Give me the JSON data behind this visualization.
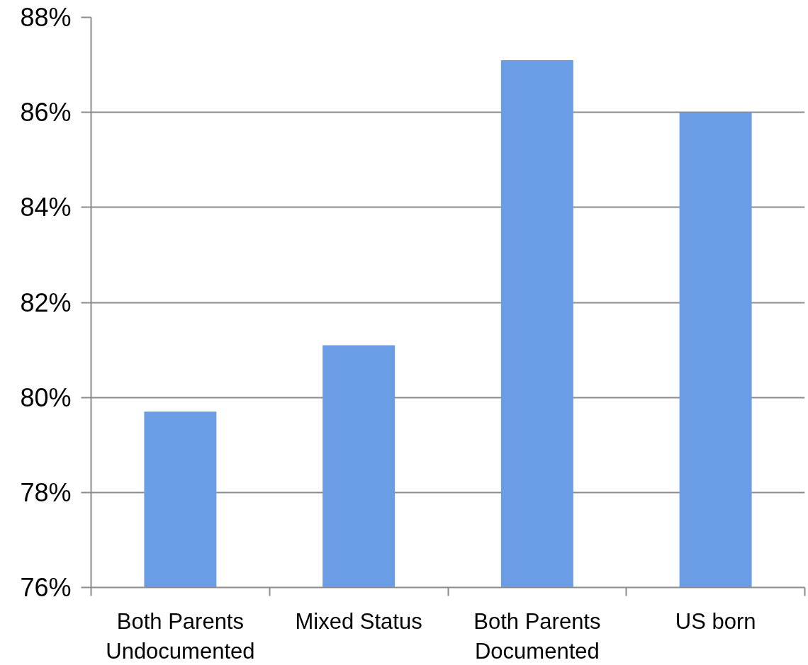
{
  "chart_data": {
    "type": "bar",
    "categories": [
      "Both Parents Undocumented",
      "Mixed Status",
      "Both Parents Documented",
      "US born"
    ],
    "values": [
      79.7,
      81.1,
      87.1,
      86.0
    ],
    "color": "#6a9de6",
    "ylim": [
      76,
      88
    ],
    "yticks": [
      {
        "value": 76,
        "label": "76%"
      },
      {
        "value": 78,
        "label": "78%"
      },
      {
        "value": 80,
        "label": "80%"
      },
      {
        "value": 82,
        "label": "82%"
      },
      {
        "value": 84,
        "label": "84%"
      },
      {
        "value": 86,
        "label": "86%"
      },
      {
        "value": 88,
        "label": "88%"
      }
    ],
    "grid": "y"
  }
}
